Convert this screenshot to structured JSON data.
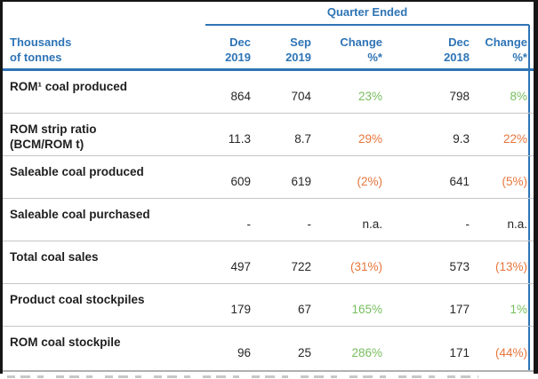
{
  "colors": {
    "accent_blue": "#2E74B5",
    "positive_green": "#77BE5D",
    "negative_orange": "#E7753C",
    "text_black": "#1f1f1f",
    "separator_gray": "#c6c6c6"
  },
  "table": {
    "group_header": "Quarter Ended",
    "row_header": "Thousands\nof tonnes",
    "columns": [
      {
        "line1": "Dec",
        "line2": "2019"
      },
      {
        "line1": "Sep",
        "line2": "2019"
      },
      {
        "line1": "Change",
        "line2": "%*"
      },
      {
        "line1": "Dec",
        "line2": "2018"
      },
      {
        "line1": "Change",
        "line2": "%*"
      }
    ],
    "rows": [
      {
        "label": "ROM¹ coal produced",
        "values": [
          {
            "text": "864",
            "tone": "neutral"
          },
          {
            "text": "704",
            "tone": "neutral"
          },
          {
            "text": "23%",
            "tone": "positive"
          },
          {
            "text": "798",
            "tone": "neutral"
          },
          {
            "text": "8%",
            "tone": "positive"
          }
        ]
      },
      {
        "label": "ROM strip ratio\n(BCM/ROM t)",
        "values": [
          {
            "text": "11.3",
            "tone": "neutral"
          },
          {
            "text": "8.7",
            "tone": "neutral"
          },
          {
            "text": "29%",
            "tone": "negative"
          },
          {
            "text": "9.3",
            "tone": "neutral"
          },
          {
            "text": "22%",
            "tone": "negative"
          }
        ]
      },
      {
        "label": "Saleable coal produced",
        "values": [
          {
            "text": "609",
            "tone": "neutral"
          },
          {
            "text": "619",
            "tone": "neutral"
          },
          {
            "text": "(2%)",
            "tone": "negative"
          },
          {
            "text": "641",
            "tone": "neutral"
          },
          {
            "text": "(5%)",
            "tone": "negative"
          }
        ]
      },
      {
        "label": "Saleable coal purchased",
        "values": [
          {
            "text": "-",
            "tone": "neutral"
          },
          {
            "text": "-",
            "tone": "neutral"
          },
          {
            "text": "n.a.",
            "tone": "neutral"
          },
          {
            "text": "-",
            "tone": "neutral"
          },
          {
            "text": "n.a.",
            "tone": "neutral"
          }
        ]
      },
      {
        "label": "Total coal sales",
        "values": [
          {
            "text": "497",
            "tone": "neutral"
          },
          {
            "text": "722",
            "tone": "neutral"
          },
          {
            "text": "(31%)",
            "tone": "negative"
          },
          {
            "text": "573",
            "tone": "neutral"
          },
          {
            "text": "(13%)",
            "tone": "negative"
          }
        ]
      },
      {
        "label": "Product coal stockpiles",
        "values": [
          {
            "text": "179",
            "tone": "neutral"
          },
          {
            "text": "67",
            "tone": "neutral"
          },
          {
            "text": "165%",
            "tone": "positive"
          },
          {
            "text": "177",
            "tone": "neutral"
          },
          {
            "text": "1%",
            "tone": "positive"
          }
        ]
      },
      {
        "label": "ROM coal stockpile",
        "values": [
          {
            "text": "96",
            "tone": "neutral"
          },
          {
            "text": "25",
            "tone": "neutral"
          },
          {
            "text": "286%",
            "tone": "positive"
          },
          {
            "text": "171",
            "tone": "neutral"
          },
          {
            "text": "(44%)",
            "tone": "negative"
          }
        ]
      }
    ]
  }
}
